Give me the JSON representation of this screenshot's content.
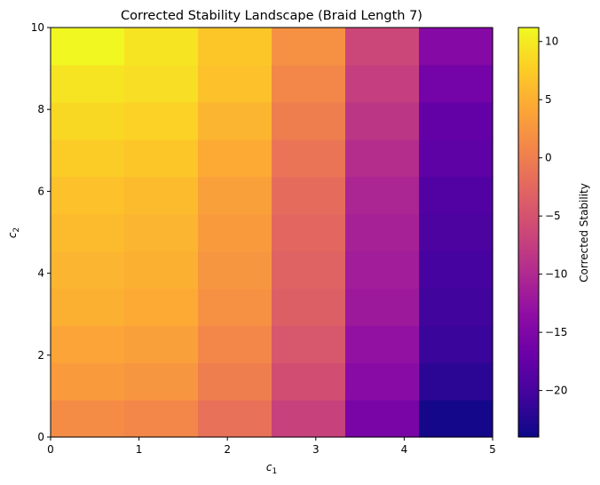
{
  "chart_data": {
    "type": "heatmap",
    "title": "Corrected Stability Landscape (Braid Length 7)",
    "xlabel_base": "c",
    "xlabel_sub": "1",
    "ylabel_base": "c",
    "ylabel_sub": "2",
    "xlim": [
      0,
      5
    ],
    "ylim": [
      0,
      10
    ],
    "x_edges": [
      0,
      0.833,
      1.667,
      2.5,
      3.333,
      4.167,
      5
    ],
    "y_edges": [
      0,
      0.909,
      1.818,
      2.727,
      3.636,
      4.545,
      5.455,
      6.364,
      7.273,
      8.182,
      9.091,
      10
    ],
    "x_ticks": [
      0,
      1,
      2,
      3,
      4,
      5
    ],
    "y_ticks": [
      0,
      2,
      4,
      6,
      8,
      10
    ],
    "values_rows_bottom_to_top": [
      [
        1.5,
        1.0,
        -1.5,
        -7.0,
        -15.5,
        -23.5
      ],
      [
        3.0,
        2.5,
        0.0,
        -5.5,
        -14.0,
        -22.0
      ],
      [
        4.0,
        3.5,
        1.0,
        -4.5,
        -13.0,
        -21.0
      ],
      [
        5.0,
        4.5,
        2.0,
        -3.5,
        -12.0,
        -20.5
      ],
      [
        5.5,
        5.0,
        2.5,
        -3.0,
        -11.5,
        -20.0
      ],
      [
        6.0,
        5.5,
        3.0,
        -2.5,
        -11.0,
        -19.5
      ],
      [
        6.5,
        6.0,
        3.5,
        -2.0,
        -10.5,
        -19.0
      ],
      [
        7.5,
        7.0,
        4.5,
        -1.0,
        -9.5,
        -18.0
      ],
      [
        8.5,
        8.0,
        5.5,
        0.0,
        -8.5,
        -17.5
      ],
      [
        9.5,
        9.0,
        6.5,
        1.0,
        -7.5,
        -16.0
      ],
      [
        11.0,
        9.5,
        7.0,
        2.0,
        -6.5,
        -14.5
      ]
    ],
    "colormap": "plasma",
    "vmin": -24,
    "vmax": 11.2,
    "colorbar": {
      "label": "Corrected Stability",
      "ticks": [
        10,
        5,
        0,
        -5,
        -10,
        -15,
        -20
      ],
      "tick_labels": [
        "10",
        "5",
        "0",
        "−5",
        "−10",
        "−15",
        "−20"
      ]
    },
    "grid": false,
    "legend": "none"
  }
}
